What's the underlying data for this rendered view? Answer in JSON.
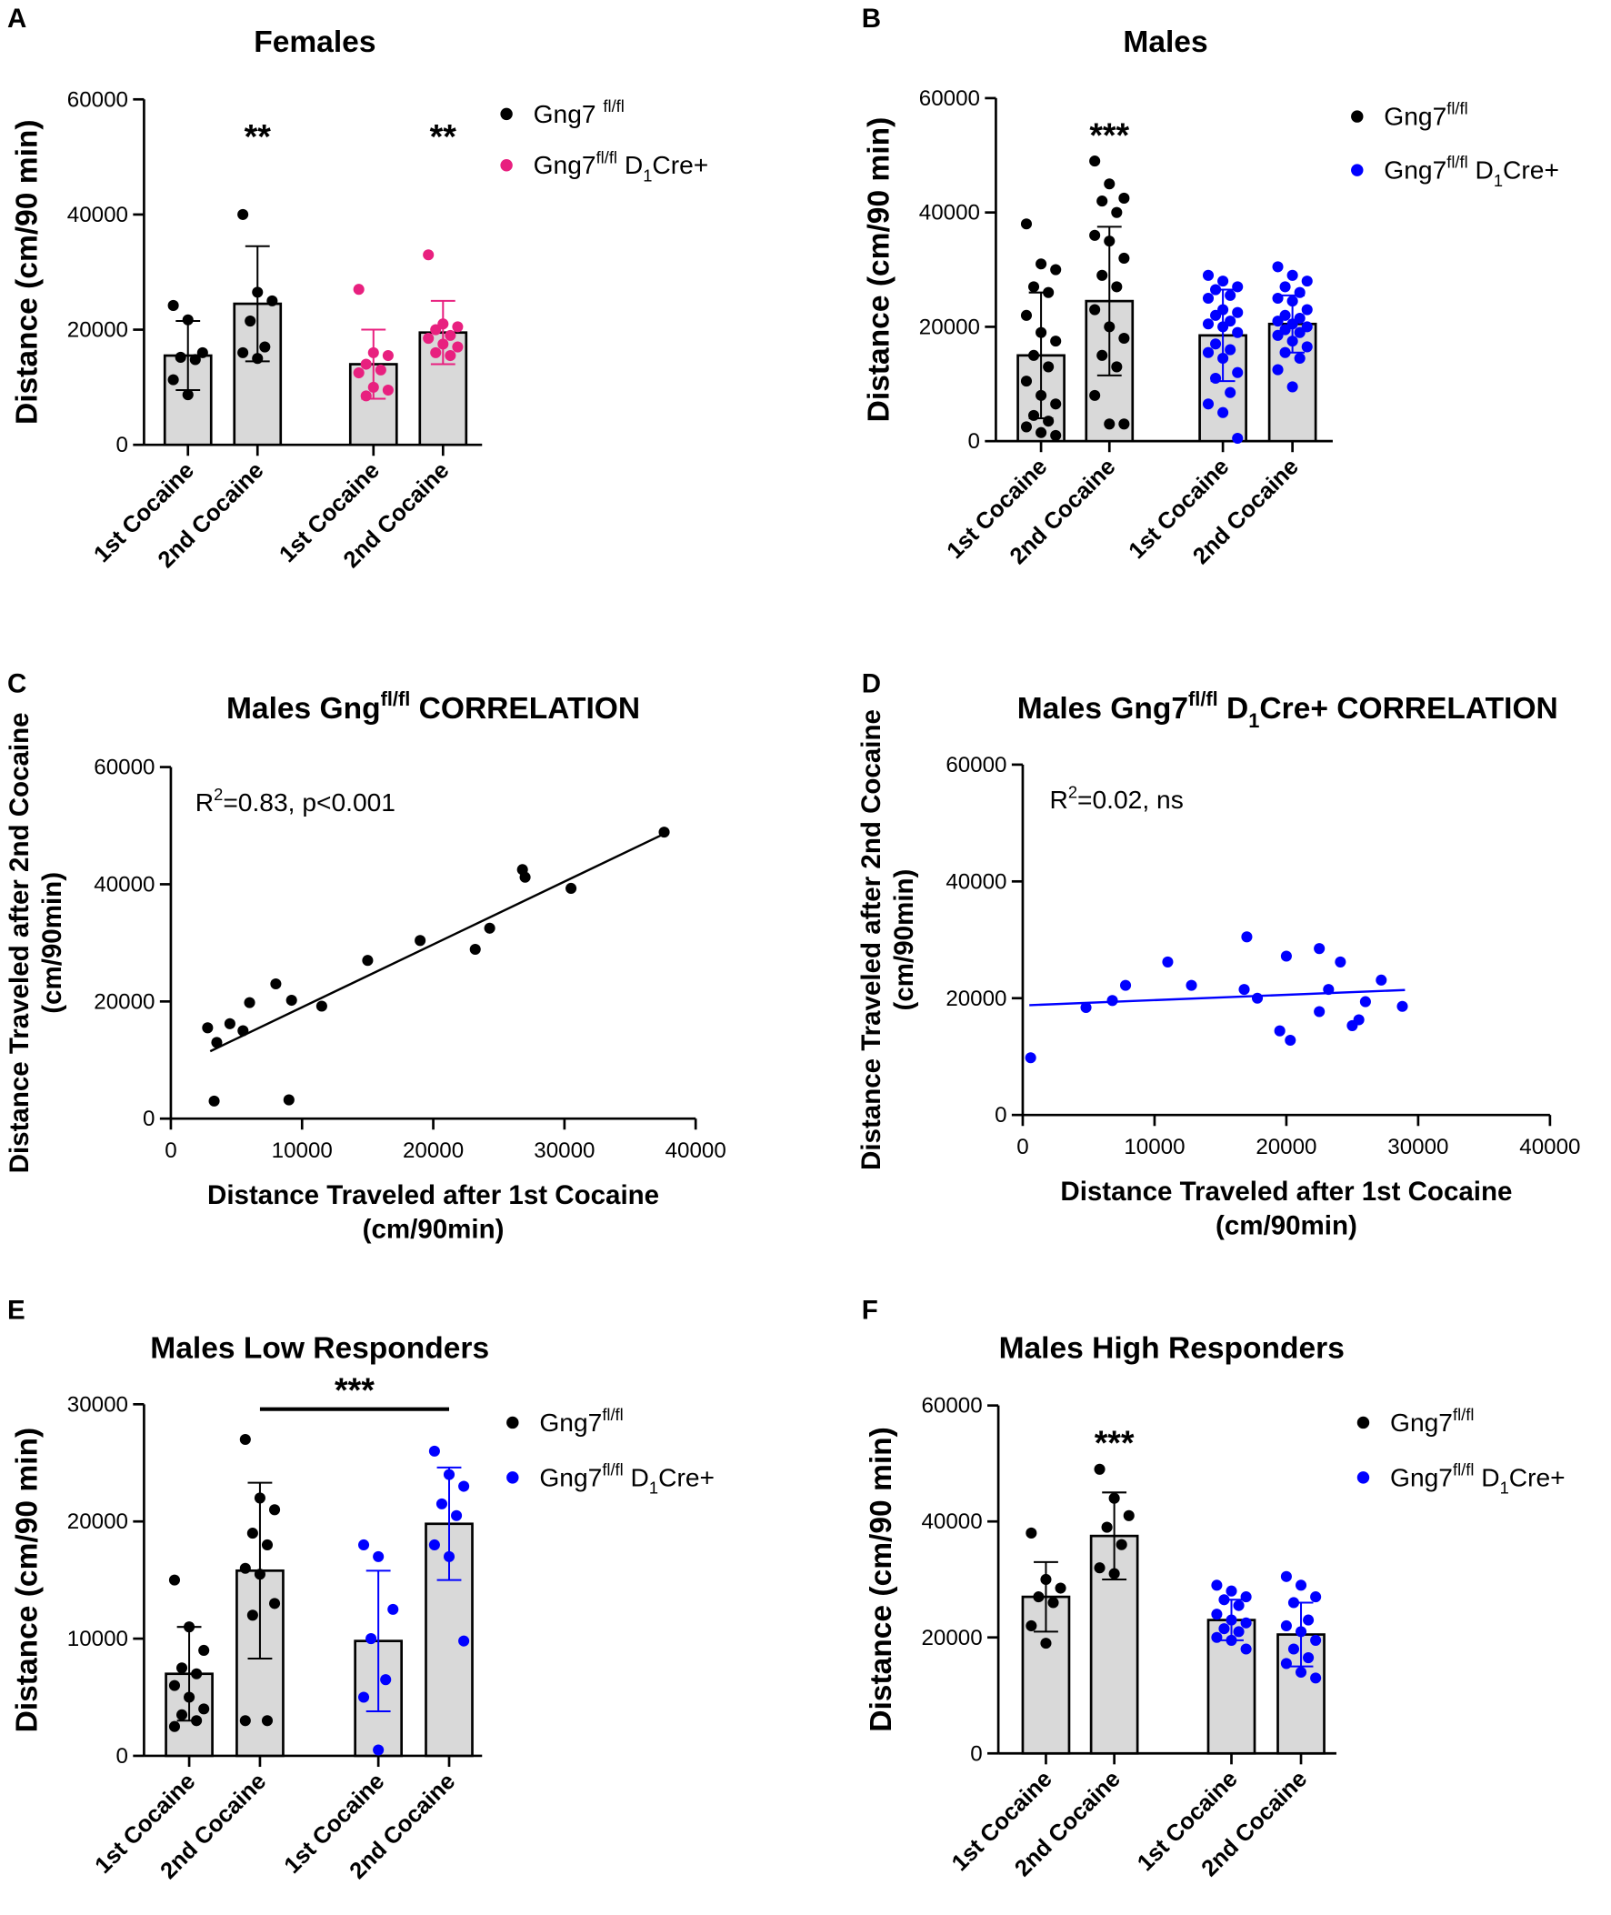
{
  "chart_data": [
    {
      "type": "bar",
      "panel": "A",
      "title": [
        {
          "t": "Females"
        }
      ],
      "ylabel": "Distance (cm/90 min)",
      "categories": [
        "1st Cocaine",
        "2nd Cocaine",
        "1st Cocaine",
        "2nd Cocaine"
      ],
      "ylim": [
        0,
        60000
      ],
      "yticks": [
        0,
        20000,
        40000,
        60000
      ],
      "bar_color": "#d9d9d9",
      "series": [
        {
          "name": [
            {
              "t": "Gng7 "
            },
            {
              "t": "fl/fl",
              "s": "sup"
            }
          ],
          "color": "#000000",
          "values": [
            15500,
            24500,
            null,
            null
          ],
          "errors": [
            6000,
            10000,
            null,
            null
          ],
          "points": [
            [
              24200,
              21700,
              16000,
              15200,
              14800,
              11300,
              8700
            ],
            [
              40000,
              26500,
              25000,
              21500,
              17000,
              16000,
              15000
            ],
            null,
            null
          ]
        },
        {
          "name": [
            {
              "t": "Gng7"
            },
            {
              "t": "fl/fl",
              "s": "sup"
            },
            {
              "t": " D"
            },
            {
              "t": "1",
              "s": "sub"
            },
            {
              "t": "Cre+"
            }
          ],
          "color": "#e8207f",
          "values": [
            null,
            null,
            14000,
            19500
          ],
          "errors": [
            null,
            null,
            6000,
            5500
          ],
          "points": [
            null,
            null,
            [
              27000,
              16000,
              15500,
              14000,
              13000,
              12500,
              10000,
              9500,
              8500
            ],
            [
              33000,
              21000,
              20500,
              20000,
              19000,
              18500,
              17500,
              17000,
              16000,
              15500
            ]
          ]
        }
      ],
      "annotations": [
        {
          "text": "**",
          "category": 1
        },
        {
          "text": "**",
          "category": 3
        }
      ]
    },
    {
      "type": "bar",
      "panel": "B",
      "title": [
        {
          "t": "Males"
        }
      ],
      "ylabel": "Distance (cm/90 min)",
      "categories": [
        "1st Cocaine",
        "2nd Cocaine",
        "1st Cocaine",
        "2nd Cocaine"
      ],
      "ylim": [
        0,
        60000
      ],
      "yticks": [
        0,
        20000,
        40000,
        60000
      ],
      "bar_color": "#d9d9d9",
      "series": [
        {
          "name": [
            {
              "t": "Gng7"
            },
            {
              "t": "fl/fl",
              "s": "sup"
            }
          ],
          "color": "#000000",
          "values": [
            15000,
            24500,
            null,
            null
          ],
          "errors": [
            11000,
            13000,
            null,
            null
          ],
          "points": [
            [
              38000,
              31000,
              30000,
              27000,
              26000,
              22000,
              19000,
              17500,
              15000,
              13000,
              10500,
              8000,
              6500,
              4500,
              3500,
              2500,
              1500,
              1000
            ],
            [
              49000,
              45000,
              42500,
              42000,
              40000,
              36000,
              35000,
              32000,
              29000,
              27000,
              23000,
              20000,
              18000,
              15000,
              13000,
              8000,
              3000,
              3000
            ],
            null,
            null
          ]
        },
        {
          "name": [
            {
              "t": "Gng7"
            },
            {
              "t": "fl/fl",
              "s": "sup"
            },
            {
              "t": " D"
            },
            {
              "t": "1",
              "s": "sub"
            },
            {
              "t": "Cre+"
            }
          ],
          "color": "#0000ff",
          "values": [
            null,
            null,
            18500,
            20500
          ],
          "errors": [
            null,
            null,
            8000,
            5000
          ],
          "points": [
            null,
            null,
            [
              29000,
              28000,
              27000,
              26500,
              25500,
              25000,
              23000,
              22500,
              22000,
              21000,
              20500,
              20000,
              19000,
              17000,
              16000,
              15500,
              14500,
              12000,
              11000,
              8500,
              6500,
              5000,
              500
            ],
            [
              30500,
              29000,
              28000,
              27000,
              26000,
              25000,
              24500,
              23000,
              22000,
              21500,
              21000,
              20500,
              20000,
              19500,
              19000,
              18500,
              17500,
              16500,
              15500,
              14500,
              12500,
              9500
            ]
          ]
        }
      ],
      "annotations": [
        {
          "text": "***",
          "category": 1
        }
      ]
    },
    {
      "type": "scatter",
      "panel": "C",
      "title": [
        {
          "t": "Males Gng"
        },
        {
          "t": "fl/fl",
          "s": "sup"
        },
        {
          "t": " CORRELATION"
        }
      ],
      "xlabel": [
        "Distance Traveled after 1st Cocaine",
        "(cm/90min)"
      ],
      "ylabel": [
        "Distance Traveled after 2nd Cocaine",
        "(cm/90min)"
      ],
      "xlim": [
        0,
        40000
      ],
      "xticks": [
        0,
        10000,
        20000,
        30000,
        40000
      ],
      "ylim": [
        0,
        60000
      ],
      "yticks": [
        0,
        20000,
        40000,
        60000
      ],
      "note": [
        {
          "t": "R"
        },
        {
          "t": "2",
          "s": "sup"
        },
        {
          "t": "=0.83, p<0.001"
        }
      ],
      "series": [
        {
          "color": "#000000",
          "x": [
            2800,
            3300,
            3500,
            4500,
            5500,
            6000,
            8000,
            9000,
            9200,
            11500,
            15000,
            19000,
            23200,
            24300,
            26800,
            27000,
            30500,
            37600
          ],
          "y": [
            15500,
            3000,
            13000,
            16200,
            15000,
            19800,
            23000,
            3200,
            20200,
            19200,
            27000,
            30400,
            28900,
            32500,
            42500,
            41200,
            39300,
            48900
          ],
          "fit": {
            "x": [
              3000,
              37500
            ],
            "y": [
              11500,
              48500
            ]
          }
        }
      ]
    },
    {
      "type": "scatter",
      "panel": "D",
      "title": [
        {
          "t": "Males Gng7"
        },
        {
          "t": "fl/fl",
          "s": "sup"
        },
        {
          "t": " D"
        },
        {
          "t": "1",
          "s": "sub"
        },
        {
          "t": "Cre+ CORRELATION"
        }
      ],
      "xlabel": [
        "Distance Traveled after 1st Cocaine",
        "(cm/90min)"
      ],
      "ylabel": [
        "Distance Traveled after 2nd Cocaine",
        "(cm/90min)"
      ],
      "xlim": [
        0,
        40000
      ],
      "xticks": [
        0,
        10000,
        20000,
        30000,
        40000
      ],
      "ylim": [
        0,
        60000
      ],
      "yticks": [
        0,
        20000,
        40000,
        60000
      ],
      "note": [
        {
          "t": "R"
        },
        {
          "t": "2",
          "s": "sup"
        },
        {
          "t": "=0.02, ns"
        }
      ],
      "series": [
        {
          "color": "#0000ff",
          "x": [
            600,
            4800,
            6800,
            7800,
            11000,
            12800,
            16800,
            17000,
            17800,
            19500,
            20000,
            20300,
            22500,
            22500,
            23200,
            24100,
            25000,
            25500,
            26000,
            27200,
            28800
          ],
          "y": [
            9800,
            18400,
            19600,
            22200,
            26200,
            22200,
            21500,
            30500,
            20000,
            14400,
            27200,
            12800,
            17700,
            28500,
            21500,
            26200,
            15300,
            16300,
            19400,
            23100,
            18600
          ],
          "fit": {
            "x": [
              500,
              29000
            ],
            "y": [
              18800,
              21400
            ]
          }
        }
      ]
    },
    {
      "type": "bar",
      "panel": "E",
      "title": [
        {
          "t": "Males Low Responders"
        }
      ],
      "ylabel": "Distance (cm/90 min)",
      "categories": [
        "1st Cocaine",
        "2nd Cocaine",
        "1st Cocaine",
        "2nd Cocaine"
      ],
      "ylim": [
        0,
        30000
      ],
      "yticks": [
        0,
        10000,
        20000,
        30000
      ],
      "bar_color": "#d9d9d9",
      "series": [
        {
          "name": [
            {
              "t": "Gng7"
            },
            {
              "t": "fl/fl",
              "s": "sup"
            }
          ],
          "color": "#000000",
          "values": [
            7000,
            15800,
            null,
            null
          ],
          "errors": [
            4000,
            7500,
            null,
            null
          ],
          "points": [
            [
              15000,
              11000,
              9000,
              7500,
              7000,
              6000,
              5000,
              4000,
              3500,
              3000,
              2500
            ],
            [
              27000,
              22000,
              21000,
              19000,
              18000,
              16000,
              15500,
              13000,
              12000,
              3000,
              3000
            ],
            null,
            null
          ]
        },
        {
          "name": [
            {
              "t": "Gng7"
            },
            {
              "t": "fl/fl",
              "s": "sup"
            },
            {
              "t": " D"
            },
            {
              "t": "1",
              "s": "sub"
            },
            {
              "t": "Cre+"
            }
          ],
          "color": "#0000ff",
          "values": [
            null,
            null,
            9800,
            19800
          ],
          "errors": [
            null,
            null,
            6000,
            4800
          ],
          "points": [
            null,
            null,
            [
              18000,
              17000,
              12500,
              10000,
              6500,
              5000,
              500
            ],
            [
              26000,
              24000,
              23000,
              21500,
              20500,
              18000,
              17000,
              9800
            ]
          ]
        }
      ],
      "annotations": [
        {
          "text": "***",
          "from": 1,
          "to": 3
        }
      ]
    },
    {
      "type": "bar",
      "panel": "F",
      "title": [
        {
          "t": "Males High Responders"
        }
      ],
      "ylabel": "Distance (cm/90 min)",
      "categories": [
        "1st Cocaine",
        "2nd Cocaine",
        "1st Cocaine",
        "2nd Cocaine"
      ],
      "ylim": [
        0,
        60000
      ],
      "yticks": [
        0,
        20000,
        40000,
        60000
      ],
      "bar_color": "#d9d9d9",
      "series": [
        {
          "name": [
            {
              "t": "Gng7"
            },
            {
              "t": "fl/fl",
              "s": "sup"
            }
          ],
          "color": "#000000",
          "values": [
            27000,
            37500,
            null,
            null
          ],
          "errors": [
            6000,
            7500,
            null,
            null
          ],
          "points": [
            [
              38000,
              30000,
              28500,
              27000,
              26000,
              22000,
              19000
            ],
            [
              49000,
              44000,
              41000,
              39000,
              36000,
              32000,
              31000
            ],
            null,
            null
          ]
        },
        {
          "name": [
            {
              "t": "Gng7"
            },
            {
              "t": "fl/fl",
              "s": "sup"
            },
            {
              "t": " D"
            },
            {
              "t": "1",
              "s": "sub"
            },
            {
              "t": "Cre+"
            }
          ],
          "color": "#0000ff",
          "values": [
            null,
            null,
            23000,
            20500
          ],
          "errors": [
            null,
            null,
            3500,
            5500
          ],
          "points": [
            null,
            null,
            [
              29000,
              28000,
              27000,
              26500,
              25500,
              24000,
              23000,
              22500,
              21500,
              21000,
              20000,
              19500,
              18000
            ],
            [
              30500,
              29000,
              27000,
              26000,
              23000,
              22000,
              21000,
              19500,
              18000,
              16500,
              15500,
              14000,
              13000
            ]
          ]
        }
      ],
      "annotations": [
        {
          "text": "***",
          "category": 1
        }
      ]
    }
  ]
}
